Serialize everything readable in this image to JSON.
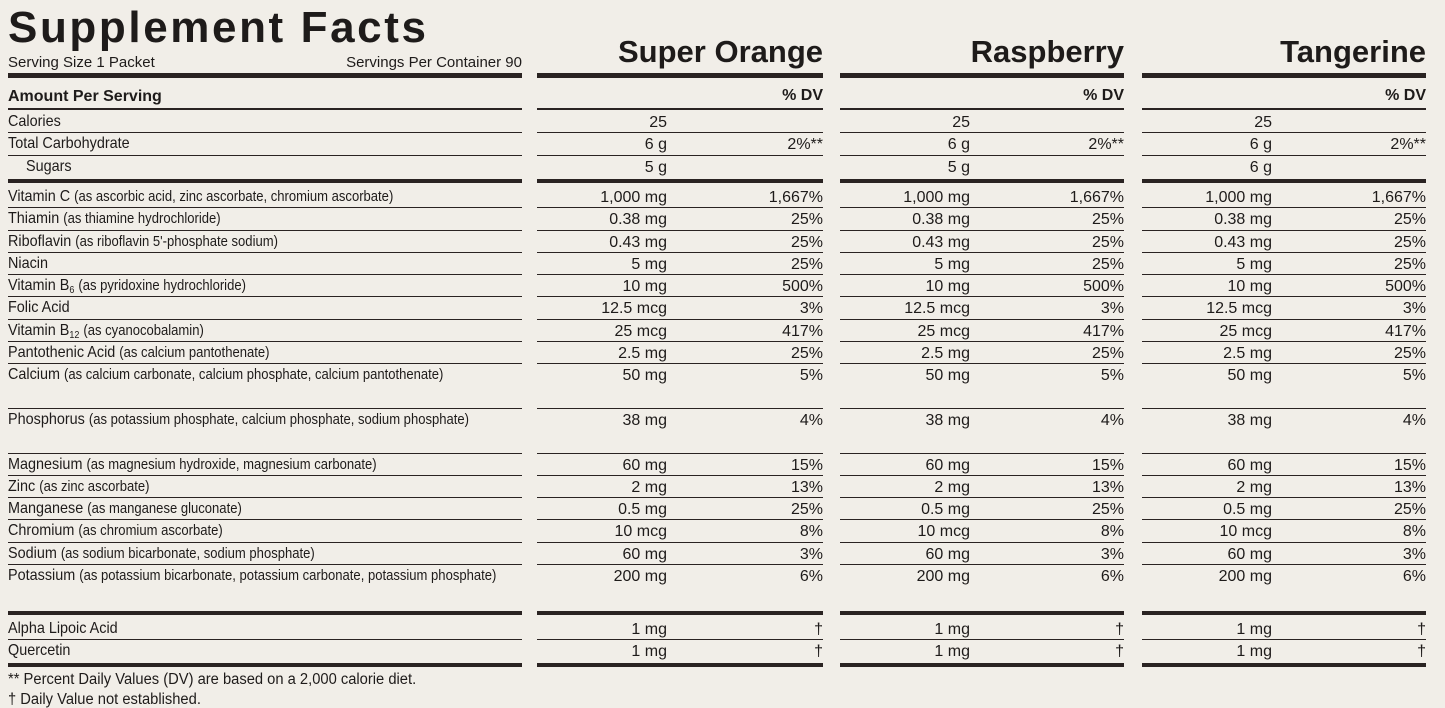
{
  "title": "Supplement Facts",
  "serving_size": "Serving Size 1 Packet",
  "servings_per_container": "Servings Per Container 90",
  "amount_header": "Amount Per Serving",
  "dv_header": "% DV",
  "columns": [
    "Super Orange",
    "Raspberry",
    "Tangerine"
  ],
  "sections": [
    {
      "rows": [
        {
          "name": "Calories",
          "values": [
            [
              "25"
            ],
            [
              "25"
            ],
            [
              "25"
            ]
          ]
        },
        {
          "name": "Total Carbohydrate",
          "values": [
            [
              "6 g",
              "2%**"
            ],
            [
              "6 g",
              "2%**"
            ],
            [
              "6 g",
              "2%**"
            ]
          ]
        },
        {
          "name": "Sugars",
          "indent": true,
          "values": [
            [
              "5 g"
            ],
            [
              "5 g"
            ],
            [
              "6 g"
            ]
          ]
        }
      ]
    },
    {
      "rows": [
        {
          "name": "Vitamin C",
          "note": "(as ascorbic acid, zinc ascorbate, chromium ascorbate)",
          "values": [
            [
              "1,000 mg",
              "1,667%"
            ],
            [
              "1,000 mg",
              "1,667%"
            ],
            [
              "1,000 mg",
              "1,667%"
            ]
          ]
        },
        {
          "name": "Thiamin",
          "note": "(as thiamine hydrochloride)",
          "values": [
            [
              "0.38 mg",
              "25%"
            ],
            [
              "0.38 mg",
              "25%"
            ],
            [
              "0.38 mg",
              "25%"
            ]
          ]
        },
        {
          "name": "Riboflavin",
          "note": "(as riboflavin 5'-phosphate sodium)",
          "values": [
            [
              "0.43 mg",
              "25%"
            ],
            [
              "0.43 mg",
              "25%"
            ],
            [
              "0.43 mg",
              "25%"
            ]
          ]
        },
        {
          "name": "Niacin",
          "values": [
            [
              "5 mg",
              "25%"
            ],
            [
              "5 mg",
              "25%"
            ],
            [
              "5 mg",
              "25%"
            ]
          ]
        },
        {
          "name": "Vitamin B",
          "sub": "6",
          "note": "(as pyridoxine hydrochloride)",
          "values": [
            [
              "10 mg",
              "500%"
            ],
            [
              "10 mg",
              "500%"
            ],
            [
              "10 mg",
              "500%"
            ]
          ]
        },
        {
          "name": "Folic Acid",
          "values": [
            [
              "12.5 mcg",
              "3%"
            ],
            [
              "12.5 mcg",
              "3%"
            ],
            [
              "12.5 mcg",
              "3%"
            ]
          ]
        },
        {
          "name": "Vitamin B",
          "sub": "12",
          "note": "(as cyanocobalamin)",
          "values": [
            [
              "25 mcg",
              "417%"
            ],
            [
              "25 mcg",
              "417%"
            ],
            [
              "25 mcg",
              "417%"
            ]
          ]
        },
        {
          "name": "Pantothenic Acid",
          "note": "(as calcium pantothenate)",
          "values": [
            [
              "2.5 mg",
              "25%"
            ],
            [
              "2.5 mg",
              "25%"
            ],
            [
              "2.5 mg",
              "25%"
            ]
          ]
        },
        {
          "name": "Calcium",
          "note": "(as calcium carbonate, calcium phosphate, calcium pantothenate)",
          "values": [
            [
              "50 mg",
              "5%"
            ],
            [
              "50 mg",
              "5%"
            ],
            [
              "50 mg",
              "5%"
            ]
          ]
        },
        {
          "name": "Phosphorus",
          "note": "(as potassium phosphate, calcium phosphate, sodium phosphate)",
          "values": [
            [
              "38 mg",
              "4%"
            ],
            [
              "38 mg",
              "4%"
            ],
            [
              "38 mg",
              "4%"
            ]
          ]
        },
        {
          "name": "Magnesium",
          "note": "(as magnesium hydroxide, magnesium carbonate)",
          "values": [
            [
              "60 mg",
              "15%"
            ],
            [
              "60 mg",
              "15%"
            ],
            [
              "60 mg",
              "15%"
            ]
          ]
        },
        {
          "name": "Zinc",
          "note": "(as zinc ascorbate)",
          "values": [
            [
              "2 mg",
              "13%"
            ],
            [
              "2 mg",
              "13%"
            ],
            [
              "2 mg",
              "13%"
            ]
          ]
        },
        {
          "name": "Manganese",
          "note": "(as manganese gluconate)",
          "values": [
            [
              "0.5 mg",
              "25%"
            ],
            [
              "0.5 mg",
              "25%"
            ],
            [
              "0.5 mg",
              "25%"
            ]
          ]
        },
        {
          "name": "Chromium",
          "note": "(as chromium ascorbate)",
          "values": [
            [
              "10 mcg",
              "8%"
            ],
            [
              "10 mcg",
              "8%"
            ],
            [
              "10 mcg",
              "8%"
            ]
          ]
        },
        {
          "name": "Sodium",
          "note": "(as sodium bicarbonate, sodium phosphate)",
          "values": [
            [
              "60 mg",
              "3%"
            ],
            [
              "60 mg",
              "3%"
            ],
            [
              "60 mg",
              "3%"
            ]
          ]
        },
        {
          "name": "Potassium",
          "note": "(as potassium bicarbonate, potassium carbonate, potassium phosphate)",
          "values": [
            [
              "200 mg",
              "6%"
            ],
            [
              "200 mg",
              "6%"
            ],
            [
              "200 mg",
              "6%"
            ]
          ]
        }
      ]
    },
    {
      "rows": [
        {
          "name": "Alpha Lipoic Acid",
          "values": [
            [
              "1 mg",
              "†"
            ],
            [
              "1 mg",
              "†"
            ],
            [
              "1 mg",
              "†"
            ]
          ]
        },
        {
          "name": "Quercetin",
          "values": [
            [
              "1 mg",
              "†"
            ],
            [
              "1 mg",
              "†"
            ],
            [
              "1 mg",
              "†"
            ]
          ]
        }
      ]
    }
  ],
  "footnotes": [
    "** Percent Daily Values (DV) are based on a 2,000 calorie diet.",
    "† Daily Value not established."
  ]
}
